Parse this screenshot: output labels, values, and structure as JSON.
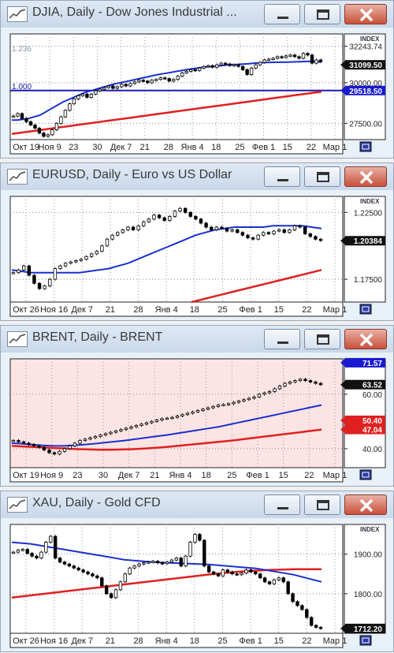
{
  "windows": [
    {
      "title": "DJIA, Daily - Dow Jones Industrial ...",
      "index_label": "INDEX",
      "bg": "#ffffff",
      "ymin": 26500,
      "ymax": 33000,
      "price_ticks": [
        {
          "value": 32243.74,
          "label": "32243.74",
          "style": "plain"
        },
        {
          "value": 31099.5,
          "label": "31099.50",
          "style": "black"
        },
        {
          "value": 30000,
          "label": "30000.00",
          "style": "plain"
        },
        {
          "value": 29518.5,
          "label": "29518.50",
          "style": "blue"
        },
        {
          "value": 27500,
          "label": "27500.00",
          "style": "plain"
        }
      ],
      "inner_labels": [
        "1.236",
        "1.000"
      ],
      "hline": 29518.5,
      "date_labels": [
        "Окт 19",
        "Ноя 9",
        "23",
        "30",
        "Дек 7",
        "21",
        "28",
        "Янв 4",
        "18",
        "25",
        "Фев 1",
        "15",
        "22",
        "Мар 1"
      ],
      "candles": [
        27950,
        28100,
        27800,
        27600,
        27400,
        27200,
        26900,
        26700,
        26800,
        27100,
        27500,
        27900,
        28300,
        28700,
        29000,
        29200,
        29300,
        29100,
        29300,
        29500,
        29600,
        29700,
        29800,
        29650,
        29750,
        29900,
        29800,
        29950,
        30050,
        30150,
        30100,
        30000,
        30150,
        30200,
        30300,
        30250,
        30100,
        30200,
        30400,
        30600,
        30700,
        30800,
        30750,
        30900,
        31000,
        31050,
        30950,
        31100,
        31200,
        31150,
        31050,
        31100,
        31000,
        30800,
        30500,
        30900,
        31100,
        31250,
        31400,
        31450,
        31500,
        31600,
        31550,
        31650,
        31700,
        31600,
        31500,
        31800,
        31700,
        31200,
        31400,
        31300
      ],
      "blue_ma": [
        27700,
        27700,
        27750,
        27800,
        27900,
        28000,
        28200,
        28400,
        28600,
        28800,
        28950,
        29100,
        29250,
        29400,
        29500,
        29600,
        29700,
        29800,
        29900,
        29980,
        30050,
        30120,
        30200,
        30280,
        30350,
        30430,
        30500,
        30560,
        30620,
        30680,
        30740,
        30800,
        30850,
        30900,
        30950,
        30980,
        31000,
        31040,
        31080,
        31110,
        31120,
        31140,
        31160,
        31200,
        31220,
        31240,
        31250,
        31260,
        31260,
        31270,
        31280,
        31290,
        31300,
        31310,
        31300,
        31260
      ],
      "red_ma": [
        26850,
        26950,
        27050,
        27150,
        27250,
        27350,
        27450,
        27550,
        27650,
        27750,
        27850,
        27950,
        28050,
        28150,
        28250,
        28350,
        28450,
        28550,
        28650,
        28750,
        28850,
        28950,
        29050,
        29150,
        29250,
        29350,
        29450
      ],
      "red_color": "#e02020",
      "blue_color": "#1a2fd0"
    },
    {
      "title": "EURUSD, Daily - Euro vs US Dollar",
      "index_label": "INDEX",
      "bg": "#ffffff",
      "ymin": 1.158,
      "ymax": 1.237,
      "price_ticks": [
        {
          "value": 1.225,
          "label": "1.22500",
          "style": "plain"
        },
        {
          "value": 1.20384,
          "label": "1.20384",
          "style": "black"
        },
        {
          "value": 1.175,
          "label": "1.17500",
          "style": "plain"
        }
      ],
      "inner_labels": [],
      "hline": null,
      "date_labels": [
        "Окт 26",
        "Ноя 16",
        "Дек 7",
        "21",
        "28",
        "Янв 4",
        "18",
        "25",
        "Фев 1",
        "15",
        "22",
        "Мар 1"
      ],
      "candles": [
        1.18,
        1.182,
        1.185,
        1.178,
        1.172,
        1.168,
        1.17,
        1.175,
        1.183,
        1.185,
        1.187,
        1.188,
        1.189,
        1.19,
        1.192,
        1.194,
        1.196,
        1.2,
        1.205,
        1.208,
        1.21,
        1.212,
        1.214,
        1.212,
        1.215,
        1.218,
        1.22,
        1.223,
        1.221,
        1.219,
        1.222,
        1.226,
        1.228,
        1.225,
        1.222,
        1.22,
        1.217,
        1.214,
        1.212,
        1.214,
        1.213,
        1.211,
        1.212,
        1.21,
        1.208,
        1.206,
        1.205,
        1.208,
        1.21,
        1.209,
        1.211,
        1.212,
        1.21,
        1.212,
        1.215,
        1.214,
        1.209,
        1.207,
        1.205,
        1.204
      ],
      "blue_ma": [
        1.182,
        1.181,
        1.18,
        1.18,
        1.18,
        1.18,
        1.18,
        1.18,
        1.181,
        1.182,
        1.183,
        1.185,
        1.187,
        1.19,
        1.193,
        1.196,
        1.199,
        1.202,
        1.205,
        1.208,
        1.21,
        1.212,
        1.213,
        1.214,
        1.214,
        1.214,
        1.214,
        1.215,
        1.215,
        1.215,
        1.215,
        1.214,
        1.213
      ],
      "red_ma": [
        1.158,
        1.16,
        1.162,
        1.164,
        1.166,
        1.168,
        1.17,
        1.172,
        1.174,
        1.176,
        1.178,
        1.18,
        1.182
      ],
      "red_color": "#e02020",
      "blue_color": "#1a2fd0"
    },
    {
      "title": "BRENT, Daily - BRENT",
      "index_label": "",
      "bg": "#fde4e4",
      "ymin": 33,
      "ymax": 73,
      "price_ticks": [
        {
          "value": 71.57,
          "label": "71.57",
          "style": "blue"
        },
        {
          "value": 63.52,
          "label": "63.52",
          "style": "black"
        },
        {
          "value": 60.0,
          "label": "60.00",
          "style": "plain"
        },
        {
          "value": 50.4,
          "label": "50.40",
          "style": "red"
        },
        {
          "value": 47.04,
          "label": "47.04",
          "style": "red"
        },
        {
          "value": 40.0,
          "label": "40.00",
          "style": "plain"
        }
      ],
      "inner_labels": [],
      "hline": null,
      "date_labels": [
        "Окт 19",
        "Ноя 9",
        "23",
        "30",
        "Дек 7",
        "21",
        "Янв 4",
        "18",
        "25",
        "Фев 1",
        "15",
        "22",
        "Мар 1"
      ],
      "candles": [
        43,
        42.5,
        42,
        41.5,
        41,
        40.5,
        39.5,
        38.5,
        38,
        39,
        40,
        41,
        42,
        43,
        43.5,
        44,
        44.5,
        45,
        45.5,
        46,
        46.5,
        47,
        47.5,
        48,
        48.5,
        49,
        49.5,
        50,
        50.5,
        51,
        51.2,
        51.5,
        52,
        52.5,
        53,
        53.5,
        54,
        54.5,
        55,
        55.5,
        56,
        56.2,
        56.5,
        57,
        57.5,
        58,
        58.5,
        59,
        60,
        60.5,
        61,
        62,
        63,
        64,
        64.5,
        65,
        65.5,
        65,
        64.5,
        64,
        63.5
      ],
      "blue_ma": [
        42,
        41.8,
        41.5,
        41.2,
        41,
        41,
        41.2,
        41.5,
        41.8,
        42.2,
        42.6,
        43,
        43.5,
        44,
        44.5,
        45,
        45.6,
        46.2,
        46.8,
        47.4,
        48,
        48.8,
        49.6,
        50.4,
        51.2,
        52,
        52.8,
        53.6,
        54.4,
        55.2,
        56
      ],
      "red_ma": [
        41,
        40.8,
        40.6,
        40.4,
        40.2,
        40,
        39.8,
        39.7,
        39.6,
        39.6,
        39.7,
        39.8,
        40,
        40.3,
        40.6,
        41,
        41.4,
        41.8,
        42.2,
        42.6,
        43,
        43.5,
        44,
        44.5,
        45,
        45.5,
        46,
        46.5,
        47
      ],
      "red_color": "#e02020",
      "blue_color": "#1a2fd0"
    },
    {
      "title": "XAU, Daily - Gold CFD",
      "index_label": "INDEX",
      "bg": "#ffffff",
      "ymin": 1700,
      "ymax": 1975,
      "price_ticks": [
        {
          "value": 1900,
          "label": "1900.00",
          "style": "plain"
        },
        {
          "value": 1800,
          "label": "1800.00",
          "style": "plain"
        },
        {
          "value": 1712.2,
          "label": "1712.20",
          "style": "black"
        }
      ],
      "inner_labels": [],
      "hline": null,
      "date_labels": [
        "Окт 26",
        "Ноя 16",
        "Дек 7",
        "21",
        "28",
        "Янв 4",
        "18",
        "25",
        "Фев 1",
        "15",
        "22",
        "Мар 1"
      ],
      "candles": [
        1905,
        1910,
        1912,
        1902,
        1895,
        1890,
        1905,
        1930,
        1945,
        1890,
        1880,
        1875,
        1870,
        1865,
        1860,
        1855,
        1850,
        1845,
        1840,
        1820,
        1800,
        1790,
        1810,
        1830,
        1850,
        1865,
        1870,
        1875,
        1878,
        1880,
        1882,
        1878,
        1876,
        1880,
        1885,
        1890,
        1870,
        1895,
        1930,
        1950,
        1935,
        1870,
        1855,
        1850,
        1845,
        1860,
        1855,
        1850,
        1848,
        1852,
        1860,
        1855,
        1850,
        1840,
        1830,
        1825,
        1835,
        1840,
        1830,
        1800,
        1780,
        1770,
        1760,
        1740,
        1720,
        1715,
        1712
      ],
      "blue_ma": [
        1930,
        1928,
        1926,
        1922,
        1918,
        1914,
        1910,
        1906,
        1902,
        1898,
        1894,
        1890,
        1886,
        1884,
        1882,
        1880,
        1879,
        1878,
        1877,
        1876,
        1875,
        1874,
        1872,
        1870,
        1868,
        1866,
        1864,
        1860,
        1856,
        1852,
        1848,
        1842,
        1836,
        1830
      ],
      "red_ma": [
        1790,
        1794,
        1798,
        1802,
        1806,
        1810,
        1814,
        1818,
        1822,
        1826,
        1830,
        1834,
        1838,
        1842,
        1846,
        1850,
        1853,
        1856,
        1858,
        1860,
        1861,
        1862,
        1862,
        1862
      ],
      "red_color": "#e02020",
      "blue_color": "#1a2fd0"
    }
  ]
}
